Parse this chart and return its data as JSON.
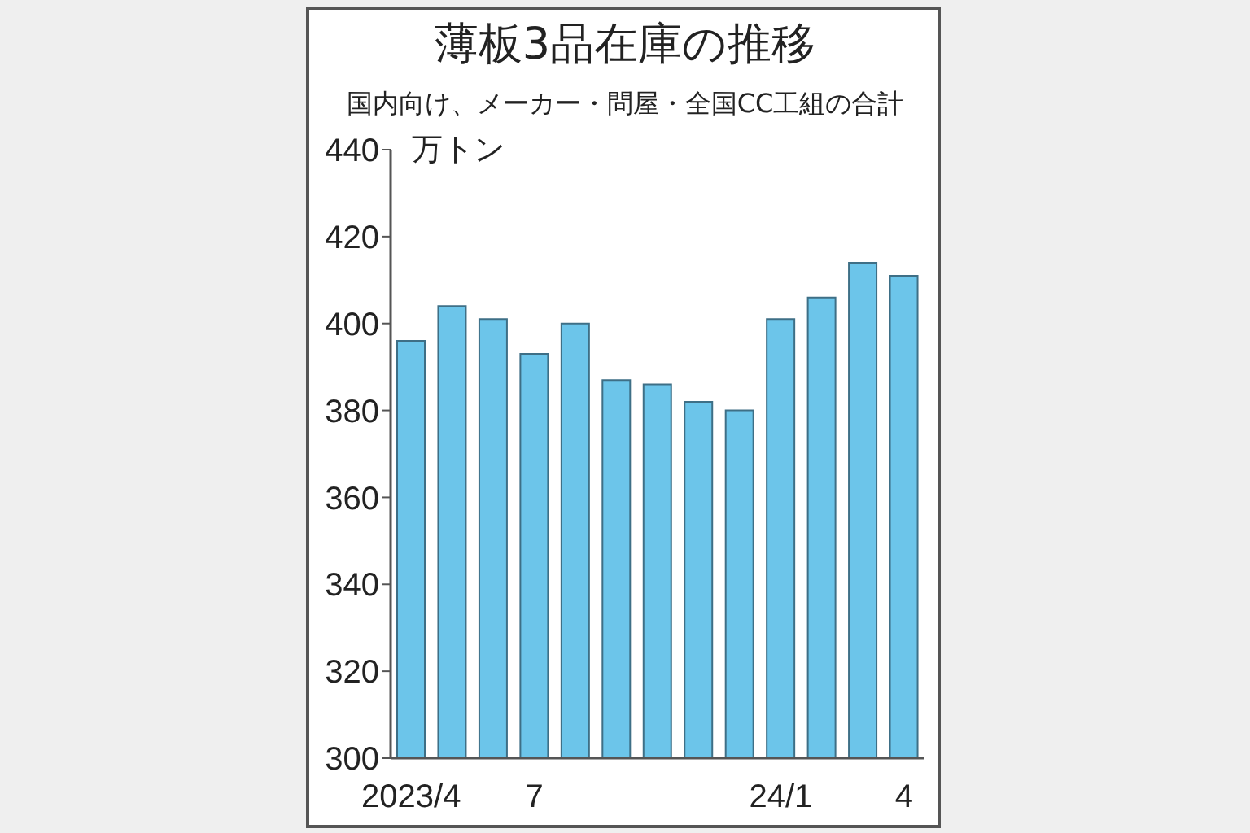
{
  "chart_data": {
    "type": "bar",
    "title": "薄板3品在庫の推移",
    "subtitle": "国内向け、メーカー・問屋・全国CC工組の合計",
    "ylabel": "万トン",
    "categories": [
      "2023/4",
      null,
      null,
      "7",
      null,
      null,
      null,
      null,
      null,
      "24/1",
      null,
      null,
      "4"
    ],
    "values": [
      396,
      404,
      401,
      393,
      400,
      387,
      386,
      382,
      380,
      401,
      406,
      414,
      411
    ],
    "color": "#6cc5ea",
    "ylim": [
      300,
      440
    ],
    "yticks": [
      300,
      320,
      340,
      360,
      380,
      400,
      420,
      440
    ]
  }
}
